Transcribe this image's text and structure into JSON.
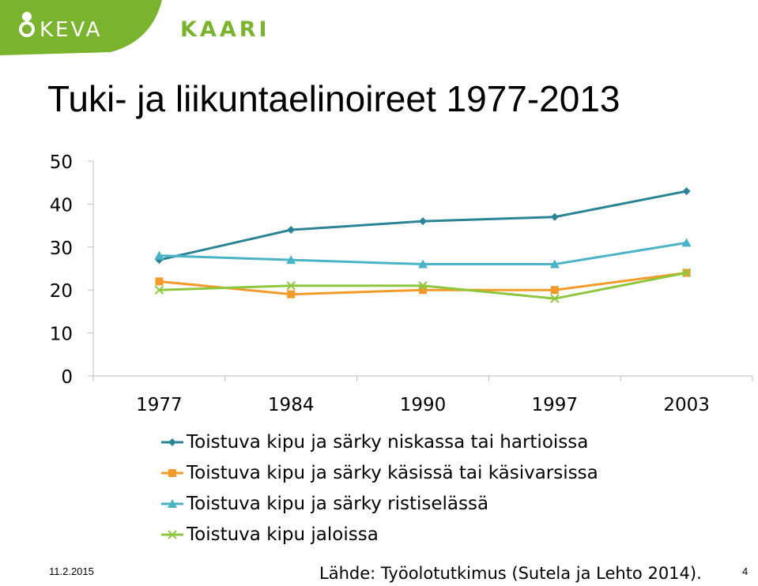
{
  "header": {
    "logo_text": "KEVA",
    "brand_text": "KAARI",
    "brand_color": "#7ab32e"
  },
  "slide": {
    "title": "Tuki- ja liikuntaelinoireet 1977-2013",
    "date": "11.2.2015",
    "source": "Lähde: Työolotutkimus (Sutela ja Lehto 2014).",
    "page_number": "4"
  },
  "chart_data": {
    "type": "line",
    "title": "",
    "xlabel": "",
    "ylabel": "",
    "categories": [
      "1977",
      "1984",
      "1990",
      "1997",
      "2003"
    ],
    "ylim": [
      0,
      50
    ],
    "yticks": [
      0,
      10,
      20,
      30,
      40,
      50
    ],
    "grid": false,
    "legend_position": "bottom",
    "series": [
      {
        "name": "Toistuva kipu ja särky niskassa tai hartioissa",
        "values": [
          27,
          34,
          36,
          37,
          43
        ],
        "color": "#2a8496",
        "marker": "diamond"
      },
      {
        "name": "Toistuva kipu ja särky käsissä tai käsivarsissa",
        "values": [
          22,
          19,
          20,
          20,
          24
        ],
        "color": "#f29b2a",
        "marker": "square"
      },
      {
        "name": "Toistuva kipu ja särky ristiselässä",
        "values": [
          28,
          27,
          26,
          26,
          31
        ],
        "color": "#4ab4c6",
        "marker": "triangle"
      },
      {
        "name": "Toistuva kipu jaloissa",
        "values": [
          20,
          21,
          21,
          18,
          24
        ],
        "color": "#8ec63f",
        "marker": "x"
      }
    ]
  }
}
